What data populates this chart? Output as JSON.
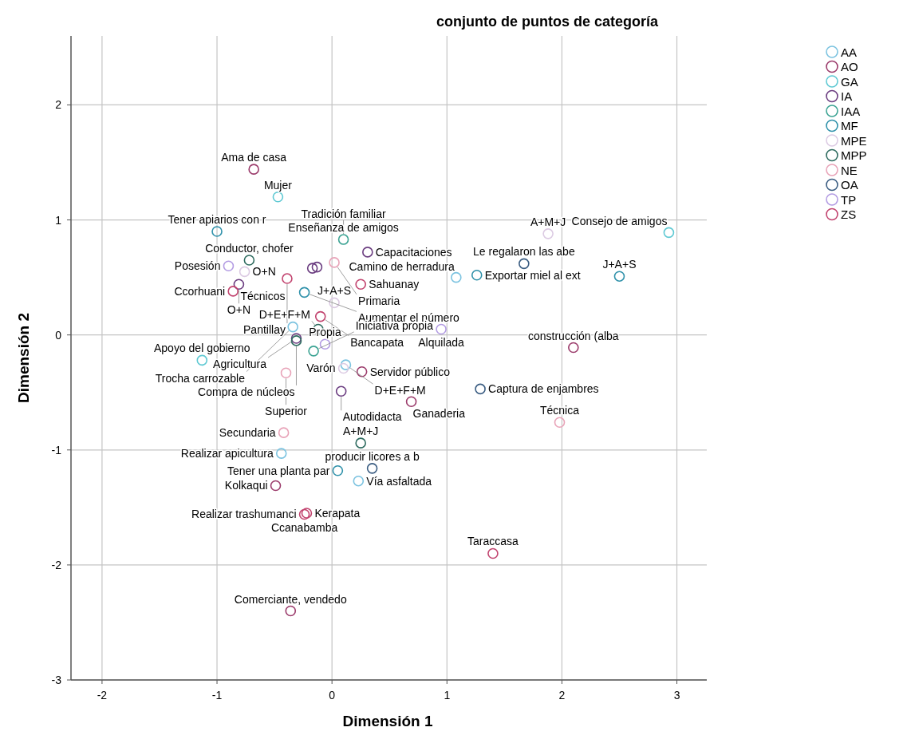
{
  "chart_data": {
    "type": "scatter",
    "title": "conjunto de puntos de categoría",
    "xlabel": "Dimensión 1",
    "ylabel": "Dimensión 2",
    "xlim": [
      -2.27,
      3.26
    ],
    "ylim": [
      -3,
      2.6
    ],
    "xticks": [
      -2,
      -1,
      0,
      1,
      2,
      3
    ],
    "yticks": [
      -3,
      -2,
      -1,
      0,
      1,
      2
    ],
    "grid": true,
    "legend": "top right",
    "marker": "circle",
    "series": [
      {
        "name": "AA",
        "color": "#7cc3e0",
        "x": [
          -0.34,
          0.12,
          -0.44,
          0.23,
          1.08
        ],
        "values": [
          0.07,
          -0.26,
          -1.03,
          -1.27,
          0.5
        ]
      },
      {
        "name": "AO",
        "color": "#9b3b6b",
        "x": [
          -0.68,
          0.26,
          0.69,
          -0.49,
          -0.36,
          2.1
        ],
        "values": [
          1.44,
          -0.32,
          -0.58,
          -1.31,
          -2.4,
          -0.11
        ]
      },
      {
        "name": "GA",
        "color": "#5fc9d3",
        "x": [
          -0.47,
          -1.13,
          2.93
        ],
        "values": [
          1.2,
          -0.22,
          0.89
        ]
      },
      {
        "name": "IA",
        "color": "#6b3d80",
        "x": [
          -0.17,
          -0.13,
          0.31,
          -0.81,
          -0.31,
          0.08
        ],
        "values": [
          0.58,
          0.59,
          0.72,
          0.44,
          -0.03,
          -0.49
        ]
      },
      {
        "name": "IAA",
        "color": "#3ba393",
        "x": [
          0.1,
          -0.16
        ],
        "values": [
          0.83,
          -0.14
        ]
      },
      {
        "name": "MF",
        "color": "#2f91aa",
        "x": [
          -1.0,
          -0.24,
          1.26,
          2.5,
          0.05
        ],
        "values": [
          0.9,
          0.37,
          0.52,
          0.51,
          -1.18
        ]
      },
      {
        "name": "MPE",
        "color": "#dccbe3",
        "x": [
          -0.76,
          0.02,
          0.1,
          1.88
        ],
        "values": [
          0.55,
          0.28,
          -0.29,
          0.88
        ]
      },
      {
        "name": "MPP",
        "color": "#2e6b5f",
        "x": [
          -0.72,
          -0.12,
          -0.31,
          0.25
        ],
        "values": [
          0.65,
          0.05,
          -0.05,
          -0.94
        ]
      },
      {
        "name": "NE",
        "color": "#e8a3b8",
        "x": [
          0.02,
          -0.4,
          1.98,
          -0.42
        ],
        "values": [
          0.63,
          -0.33,
          -0.76,
          -0.85
        ]
      },
      {
        "name": "OA",
        "color": "#3b5d82",
        "x": [
          1.67,
          1.29,
          0.35
        ],
        "values": [
          0.62,
          -0.47,
          -1.16
        ]
      },
      {
        "name": "TP",
        "color": "#b39ce3",
        "x": [
          -0.9,
          -0.06,
          0.95
        ],
        "values": [
          0.6,
          -0.08,
          0.05
        ]
      },
      {
        "name": "ZS",
        "color": "#c2446f",
        "x": [
          0.25,
          -0.86,
          -0.39,
          -0.1,
          -0.24,
          -0.22,
          1.4
        ],
        "values": [
          0.44,
          0.38,
          0.49,
          0.16,
          -1.56,
          -1.55,
          -1.9
        ]
      }
    ],
    "annotations": [
      {
        "text": "Ama de casa",
        "x": -0.68,
        "y": 1.44
      },
      {
        "text": "Mujer",
        "x": -0.47,
        "y": 1.2
      },
      {
        "text": "Enseñanza de amigos",
        "x": 0.1,
        "y": 0.83
      },
      {
        "text": "Tener apiarios con r",
        "x": -1.0,
        "y": 0.9
      },
      {
        "text": "Tradición familiar",
        "x": 0.1,
        "y": 0.83
      },
      {
        "text": "Conductor, chofer",
        "x": -0.72,
        "y": 0.65
      },
      {
        "text": "Capacitaciones",
        "x": 0.31,
        "y": 0.72
      },
      {
        "text": "Posesión",
        "x": -0.9,
        "y": 0.6
      },
      {
        "text": "O+N",
        "x": -0.76,
        "y": 0.55
      },
      {
        "text": "Primaria",
        "x": 0.02,
        "y": 0.63
      },
      {
        "text": "Técnicos",
        "x": -0.81,
        "y": 0.44
      },
      {
        "text": "O+N",
        "x": -0.81,
        "y": 0.44
      },
      {
        "text": "Pantillay",
        "x": -0.39,
        "y": 0.49
      },
      {
        "text": "Ccorhuani",
        "x": -0.86,
        "y": 0.38
      },
      {
        "text": "Aumentar el número",
        "x": -0.24,
        "y": 0.37
      },
      {
        "text": "J+A+S",
        "x": 0.02,
        "y": 0.28
      },
      {
        "text": "Sahuanay",
        "x": 0.25,
        "y": 0.44
      },
      {
        "text": "Camino de herradura",
        "x": 1.08,
        "y": 0.5
      },
      {
        "text": "Bancapata",
        "x": -0.1,
        "y": 0.16
      },
      {
        "text": "Alquilada",
        "x": 0.95,
        "y": 0.05
      },
      {
        "text": "Trocha carrozable",
        "x": -0.34,
        "y": 0.07
      },
      {
        "text": "D+E+F+M",
        "x": -0.12,
        "y": 0.05
      },
      {
        "text": "construcción (alba",
        "x": 2.1,
        "y": -0.11
      },
      {
        "text": "Compra de núcleos",
        "x": -0.31,
        "y": -0.05
      },
      {
        "text": "Agricultura",
        "x": -0.31,
        "y": -0.03
      },
      {
        "text": "Propia",
        "x": -0.06,
        "y": -0.08
      },
      {
        "text": "D+E+F+M",
        "x": 0.12,
        "y": -0.26
      },
      {
        "text": "Apoyo del gobierno",
        "x": -1.13,
        "y": -0.22
      },
      {
        "text": "Servidor público",
        "x": 0.26,
        "y": -0.32
      },
      {
        "text": "Varón",
        "x": 0.1,
        "y": -0.29
      },
      {
        "text": "Captura de enjambres",
        "x": 1.29,
        "y": -0.47
      },
      {
        "text": "Superior",
        "x": -0.4,
        "y": -0.33
      },
      {
        "text": "Técnica",
        "x": 1.98,
        "y": -0.76
      },
      {
        "text": "Autodidacta",
        "x": 0.08,
        "y": -0.49
      },
      {
        "text": "Ganaderia",
        "x": 0.69,
        "y": -0.58
      },
      {
        "text": "Iniciativa propia",
        "x": -0.16,
        "y": -0.14
      },
      {
        "text": "Secundaria",
        "x": -0.42,
        "y": -0.85
      },
      {
        "text": "A+M+J",
        "x": 0.25,
        "y": -0.94
      },
      {
        "text": "Realizar apicultura",
        "x": -0.44,
        "y": -1.03
      },
      {
        "text": "Tener una planta par",
        "x": 0.05,
        "y": -1.18
      },
      {
        "text": "producir licores a b",
        "x": 0.35,
        "y": -1.16
      },
      {
        "text": "Kolkaqui",
        "x": -0.49,
        "y": -1.31
      },
      {
        "text": "Realizar trashumanci",
        "x": -0.24,
        "y": -1.56
      },
      {
        "text": "Kerapata",
        "x": -0.22,
        "y": -1.55
      },
      {
        "text": "Vía asfaltada",
        "x": 0.23,
        "y": -1.27
      },
      {
        "text": "Ccanabamba",
        "x": -0.24,
        "y": -1.56
      },
      {
        "text": "Taraccasa",
        "x": 1.4,
        "y": -1.9
      },
      {
        "text": "A+M+J",
        "x": 1.88,
        "y": 0.88
      },
      {
        "text": "Consejo de amigos",
        "x": 2.93,
        "y": 0.89
      },
      {
        "text": "Le regalaron las abe",
        "x": 1.67,
        "y": 0.62
      },
      {
        "text": "Exportar miel al ext",
        "x": 1.26,
        "y": 0.52
      },
      {
        "text": "J+A+S",
        "x": 2.5,
        "y": 0.51
      },
      {
        "text": "Comerciante, vendedo",
        "x": -0.36,
        "y": -2.4
      }
    ]
  }
}
